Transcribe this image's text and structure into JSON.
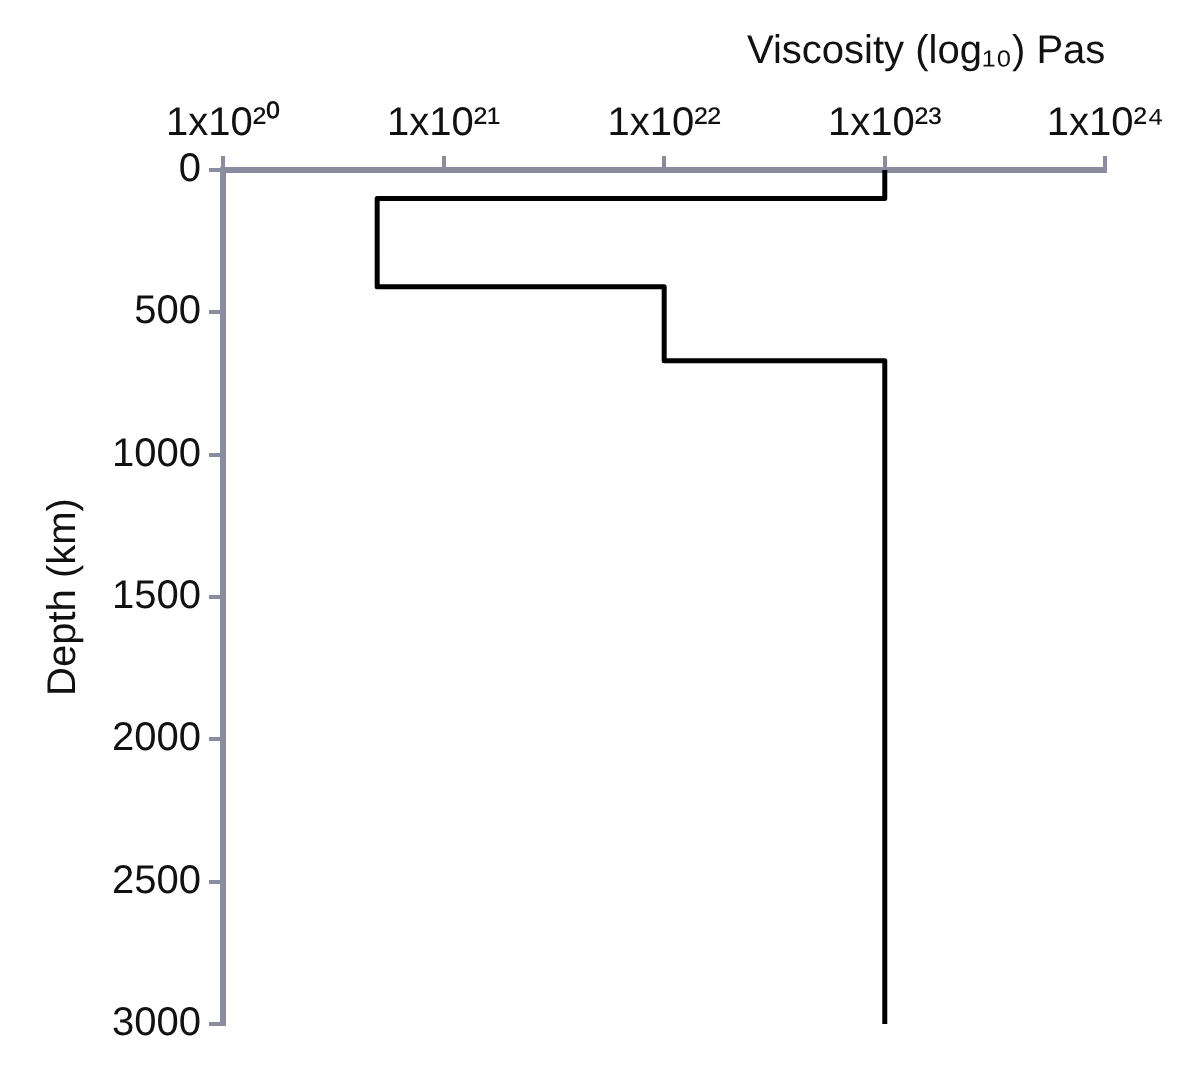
{
  "chart_data": {
    "type": "line",
    "xlabel": "Viscosity (log₁₀) Pas",
    "ylabel": "Depth (km)",
    "series": [
      {
        "color": "#000000",
        "x": [
          1e+23,
          1e+23,
          5e+20,
          5e+20,
          1e+22,
          1e+22,
          1e+23,
          1e+23
        ],
        "values": [
          0,
          100,
          100,
          410,
          410,
          670,
          670,
          3000
        ]
      }
    ],
    "xlim": [
      1e+20,
      1e+24
    ],
    "xticks": [
      {
        "value": 1e+20,
        "label": "1x10²⁰"
      },
      {
        "value": 1e+21,
        "label": "1x10²¹"
      },
      {
        "value": 1e+22,
        "label": "1x10²²"
      },
      {
        "value": 1e+23,
        "label": "1x10²³"
      },
      {
        "value": 1e+24,
        "label": "1x10²⁴"
      }
    ],
    "ylim": [
      3000,
      0
    ],
    "yticks": [
      0,
      500,
      1000,
      1500,
      2000,
      2500,
      3000
    ],
    "log": "x",
    "marker": "none",
    "line_style": "solid",
    "legend": false,
    "grid": false
  }
}
